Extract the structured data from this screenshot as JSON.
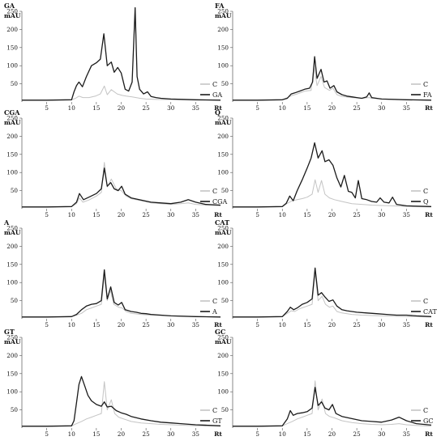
{
  "colors": {
    "sample": "#1a1a1a",
    "control": "#c4c4c4"
  },
  "chart_data": [
    {
      "type": "line",
      "title": "GA",
      "ylabel": "mAU",
      "xlabel": "Rt",
      "xlim": [
        0,
        40
      ],
      "ylim": [
        0,
        250
      ],
      "xticks": [
        "5",
        "10",
        "15",
        "20",
        "25",
        "30",
        "35"
      ],
      "yticks": [
        "50",
        "100",
        "150",
        "200",
        "250"
      ],
      "legend": "right",
      "series": [
        {
          "name": "C",
          "x": [
            0,
            5,
            10,
            10.8,
            11.5,
            12.3,
            13.5,
            14.8,
            15.8,
            16.6,
            17.2,
            18,
            19.2,
            20.2,
            21,
            22.2,
            23,
            23.8,
            25,
            27,
            30,
            35,
            40
          ],
          "y": [
            5,
            5,
            6,
            10,
            16,
            12,
            12,
            16,
            22,
            44,
            20,
            34,
            22,
            18,
            16,
            14,
            12,
            10,
            8,
            7,
            6,
            5,
            5
          ]
        },
        {
          "name": "GA",
          "x": [
            0,
            5,
            10,
            10.5,
            11,
            11.5,
            12.2,
            13,
            14,
            15,
            15.8,
            16.5,
            17.2,
            18,
            18.6,
            19.3,
            20,
            20.8,
            21.5,
            22.2,
            22.8,
            23.2,
            23.7,
            24.5,
            25.3,
            26,
            27,
            28,
            30,
            35,
            40
          ],
          "y": [
            5,
            5,
            6,
            28,
            45,
            55,
            42,
            70,
            100,
            108,
            118,
            188,
            100,
            110,
            82,
            95,
            80,
            35,
            30,
            55,
            260,
            70,
            35,
            22,
            28,
            15,
            12,
            10,
            8,
            6,
            5
          ]
        }
      ]
    },
    {
      "type": "line",
      "title": "FA",
      "ylabel": "mAU",
      "xlabel": "Rt",
      "xlim": [
        0,
        40
      ],
      "ylim": [
        0,
        250
      ],
      "xticks": [
        "5",
        "10",
        "15",
        "20",
        "25",
        "30",
        "35"
      ],
      "yticks": [
        "50",
        "100",
        "150",
        "200",
        "250"
      ],
      "legend": "right",
      "series": [
        {
          "name": "C",
          "x": [
            0,
            5,
            10,
            11,
            12,
            13,
            14.5,
            15.8,
            16.4,
            17,
            17.8,
            18.5,
            19.5,
            20.2,
            21,
            22,
            24,
            26,
            27.5,
            28,
            30,
            35,
            40
          ],
          "y": [
            5,
            5,
            6,
            12,
            18,
            22,
            30,
            32,
            100,
            45,
            70,
            40,
            32,
            38,
            20,
            15,
            12,
            10,
            12,
            10,
            8,
            6,
            5
          ]
        },
        {
          "name": "FA",
          "x": [
            0,
            5,
            10,
            11,
            11.8,
            12.5,
            13.5,
            14.5,
            15.5,
            16.1,
            16.5,
            17,
            17.8,
            18.4,
            19,
            19.6,
            20.4,
            21,
            22,
            23,
            24,
            25,
            26,
            27,
            27.5,
            28,
            29,
            30,
            35,
            40
          ],
          "y": [
            5,
            5,
            6,
            10,
            22,
            25,
            30,
            35,
            38,
            55,
            125,
            65,
            90,
            55,
            58,
            38,
            45,
            28,
            20,
            16,
            14,
            12,
            10,
            14,
            25,
            12,
            10,
            8,
            6,
            5
          ]
        }
      ]
    },
    {
      "type": "line",
      "title": "CGA",
      "ylabel": "mAU",
      "xlabel": "Rt",
      "xlim": [
        0,
        40
      ],
      "ylim": [
        0,
        250
      ],
      "xticks": [
        "5",
        "10",
        "15",
        "20",
        "25",
        "30",
        "35"
      ],
      "yticks": [
        "50",
        "100",
        "150",
        "200",
        "250"
      ],
      "legend": "right",
      "series": [
        {
          "name": "C",
          "x": [
            0,
            5,
            10,
            11,
            11.6,
            12.3,
            13.5,
            15,
            16,
            16.6,
            17.2,
            18,
            19,
            20,
            21,
            22,
            24,
            26,
            28,
            30,
            32,
            33.5,
            35,
            37,
            40
          ],
          "y": [
            5,
            5,
            6,
            14,
            30,
            18,
            24,
            35,
            45,
            128,
            60,
            82,
            55,
            50,
            35,
            28,
            22,
            16,
            14,
            12,
            14,
            16,
            12,
            10,
            8
          ]
        },
        {
          "name": "CGA",
          "x": [
            0,
            5,
            10,
            11,
            11.6,
            12.4,
            13.5,
            15,
            16,
            16.6,
            17.2,
            17.9,
            18.6,
            19.4,
            20.1,
            20.8,
            22,
            24,
            26,
            28,
            30,
            32,
            33.5,
            35,
            37,
            40
          ],
          "y": [
            5,
            5,
            6,
            18,
            42,
            25,
            32,
            42,
            55,
            112,
            62,
            72,
            55,
            50,
            62,
            40,
            30,
            24,
            18,
            16,
            14,
            18,
            25,
            18,
            12,
            10
          ]
        }
      ]
    },
    {
      "type": "line",
      "title": "Q",
      "ylabel": "mAU",
      "xlabel": "Rt",
      "xlim": [
        0,
        40
      ],
      "ylim": [
        0,
        250
      ],
      "xticks": [
        "5",
        "10",
        "15",
        "20",
        "25",
        "30",
        "35"
      ],
      "yticks": [
        "50",
        "100",
        "150",
        "200",
        "250"
      ],
      "legend": "right",
      "series": [
        {
          "name": "C",
          "x": [
            0,
            5,
            10,
            11,
            12,
            13,
            14,
            15,
            16,
            16.6,
            17.2,
            17.9,
            18.6,
            19.5,
            20.5,
            22,
            24,
            26,
            28,
            30,
            32,
            35,
            40
          ],
          "y": [
            5,
            5,
            6,
            15,
            22,
            25,
            28,
            32,
            40,
            80,
            45,
            78,
            40,
            30,
            25,
            20,
            14,
            12,
            10,
            9,
            8,
            6,
            5
          ]
        },
        {
          "name": "Q",
          "x": [
            0,
            5,
            10,
            10.8,
            11.5,
            12.2,
            13,
            14,
            15,
            15.8,
            16.5,
            17.2,
            18,
            18.6,
            19.4,
            20.2,
            21,
            21.8,
            22.5,
            23.3,
            24,
            24.7,
            25.3,
            26,
            27,
            28,
            29,
            29.7,
            30.5,
            31.5,
            32.2,
            33,
            35,
            40
          ],
          "y": [
            5,
            5,
            6,
            15,
            35,
            22,
            50,
            80,
            112,
            140,
            182,
            140,
            160,
            130,
            135,
            120,
            85,
            60,
            92,
            48,
            45,
            30,
            78,
            28,
            25,
            20,
            18,
            30,
            18,
            16,
            32,
            12,
            8,
            6
          ]
        }
      ]
    },
    {
      "type": "line",
      "title": "A",
      "ylabel": "mAU",
      "xlabel": "Rt",
      "xlim": [
        0,
        40
      ],
      "ylim": [
        0,
        250
      ],
      "xticks": [
        "5",
        "10",
        "15",
        "20",
        "25",
        "30",
        "35"
      ],
      "yticks": [
        "50",
        "100",
        "150",
        "200",
        "250"
      ],
      "legend": "right",
      "series": [
        {
          "name": "C",
          "x": [
            0,
            5,
            10,
            11,
            12,
            13,
            14,
            15,
            16,
            16.6,
            17.2,
            17.8,
            18.5,
            19.5,
            20.2,
            21,
            22,
            24,
            26,
            28,
            30,
            35,
            40
          ],
          "y": [
            5,
            5,
            6,
            10,
            15,
            25,
            30,
            35,
            40,
            120,
            50,
            80,
            40,
            32,
            30,
            20,
            15,
            12,
            10,
            9,
            8,
            6,
            5
          ]
        },
        {
          "name": "A",
          "x": [
            0,
            5,
            10,
            11,
            12,
            13,
            14,
            15,
            16,
            16.6,
            17.2,
            17.9,
            18.6,
            19.4,
            20.1,
            20.8,
            22,
            23,
            24,
            25,
            26,
            28,
            30,
            35,
            40
          ],
          "y": [
            5,
            5,
            6,
            12,
            25,
            35,
            40,
            42,
            50,
            135,
            55,
            88,
            45,
            38,
            45,
            25,
            20,
            18,
            15,
            14,
            12,
            10,
            8,
            6,
            5
          ]
        }
      ]
    },
    {
      "type": "line",
      "title": "CAT",
      "ylabel": "mAU",
      "xlabel": "Rt",
      "xlim": [
        0,
        40
      ],
      "ylim": [
        0,
        250
      ],
      "xticks": [
        "5",
        "10",
        "15",
        "20",
        "25",
        "30",
        "35"
      ],
      "yticks": [
        "50",
        "100",
        "150",
        "200",
        "250"
      ],
      "legend": "right",
      "series": [
        {
          "name": "C",
          "x": [
            0,
            5,
            10,
            11,
            11.8,
            12.5,
            13.5,
            15,
            16,
            16.6,
            17.2,
            18,
            18.7,
            19.5,
            20.2,
            21,
            22,
            24,
            26,
            28,
            30,
            35,
            40
          ],
          "y": [
            5,
            5,
            6,
            15,
            22,
            20,
            28,
            35,
            40,
            128,
            50,
            62,
            40,
            32,
            35,
            20,
            16,
            12,
            10,
            9,
            8,
            6,
            5
          ]
        },
        {
          "name": "CAT",
          "x": [
            0,
            5,
            10,
            11,
            11.6,
            12.3,
            13,
            14,
            15,
            16,
            16.6,
            17.2,
            17.9,
            18.6,
            19.4,
            20.2,
            21,
            22,
            23,
            25,
            27,
            29,
            31,
            33,
            35,
            37,
            40
          ],
          "y": [
            5,
            5,
            6,
            20,
            32,
            25,
            30,
            40,
            45,
            55,
            140,
            65,
            72,
            60,
            48,
            52,
            35,
            25,
            22,
            18,
            16,
            14,
            12,
            10,
            10,
            8,
            6
          ]
        }
      ]
    },
    {
      "type": "line",
      "title": "GT",
      "ylabel": "mAU",
      "xlabel": "Rt",
      "xlim": [
        0,
        40
      ],
      "ylim": [
        0,
        250
      ],
      "xticks": [
        "5",
        "10",
        "15",
        "20",
        "25",
        "30",
        "35"
      ],
      "yticks": [
        "50",
        "100",
        "150",
        "200",
        "250"
      ],
      "legend": "right",
      "series": [
        {
          "name": "C",
          "x": [
            0,
            5,
            10,
            11,
            12,
            13,
            14,
            15,
            16,
            16.6,
            17.2,
            18,
            18.7,
            19.5,
            20.5,
            22,
            24,
            26,
            28,
            30,
            35,
            40
          ],
          "y": [
            5,
            5,
            6,
            12,
            18,
            25,
            30,
            35,
            40,
            128,
            50,
            78,
            40,
            30,
            25,
            18,
            14,
            12,
            10,
            9,
            6,
            5
          ]
        },
        {
          "name": "GT",
          "x": [
            0,
            5,
            10,
            10.5,
            11,
            11.5,
            12,
            12.6,
            13.3,
            14,
            15,
            16,
            16.6,
            17.2,
            18,
            19,
            20,
            21,
            22,
            24,
            26,
            28,
            30,
            32,
            35,
            40
          ],
          "y": [
            5,
            5,
            6,
            20,
            70,
            120,
            142,
            118,
            90,
            75,
            65,
            60,
            72,
            58,
            60,
            48,
            42,
            38,
            32,
            25,
            20,
            16,
            14,
            12,
            9,
            6
          ]
        }
      ]
    },
    {
      "type": "line",
      "title": "GC",
      "ylabel": "mAU",
      "xlabel": "Rt",
      "xlim": [
        0,
        40
      ],
      "ylim": [
        0,
        250
      ],
      "xticks": [
        "5",
        "10",
        "15",
        "20",
        "25",
        "30",
        "35"
      ],
      "yticks": [
        "50",
        "100",
        "150",
        "200",
        "250"
      ],
      "legend": "right",
      "series": [
        {
          "name": "C",
          "x": [
            0,
            5,
            10,
            11,
            12,
            13,
            14,
            15,
            16,
            16.6,
            17.2,
            18,
            18.7,
            19.5,
            20.5,
            22,
            24,
            26,
            28,
            30,
            32,
            33.5,
            35,
            37,
            40
          ],
          "y": [
            5,
            5,
            6,
            12,
            18,
            25,
            30,
            35,
            40,
            130,
            50,
            80,
            40,
            32,
            28,
            20,
            15,
            12,
            10,
            9,
            10,
            12,
            9,
            7,
            5
          ]
        },
        {
          "name": "GC",
          "x": [
            0,
            5,
            10,
            11,
            11.6,
            12.2,
            13,
            14,
            15,
            16,
            16.6,
            17.2,
            17.9,
            18.6,
            19.4,
            20.1,
            20.8,
            22,
            24,
            26,
            28,
            30,
            32,
            33.5,
            35,
            37,
            40
          ],
          "y": [
            5,
            5,
            6,
            25,
            48,
            35,
            40,
            42,
            45,
            55,
            112,
            62,
            72,
            55,
            50,
            65,
            40,
            32,
            26,
            20,
            18,
            16,
            22,
            30,
            20,
            12,
            8
          ]
        }
      ]
    }
  ]
}
